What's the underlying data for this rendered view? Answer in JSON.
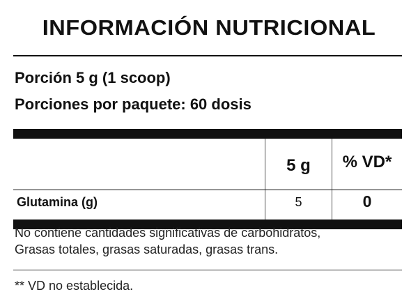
{
  "title": "INFORMACIÓN NUTRICIONAL",
  "serving": "Porción 5 g (1 scoop)",
  "servings_per_package": "Porciones por paquete: 60 dosis",
  "table": {
    "headers": [
      "",
      "5 g",
      "% VD*"
    ],
    "rows": [
      {
        "nutrient": "Glutamina (g)",
        "amount": "5",
        "vd": "0"
      }
    ]
  },
  "note_lines": [
    "No contiene cantidades significativas de carbohidratos,",
    "Grasas totales, grasas saturadas, grasas trans."
  ],
  "footnote": "** VD no establecida."
}
